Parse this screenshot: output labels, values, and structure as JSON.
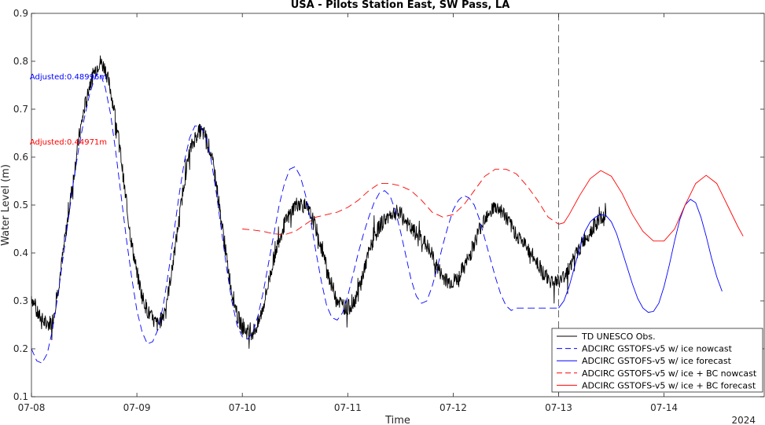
{
  "chart_data": {
    "type": "line",
    "title": "USA - Pilots Station East, SW Pass, LA",
    "xlabel": "Time",
    "ylabel": "Water Level (m)",
    "year_label": "2024",
    "x_tick_labels": [
      "07-08",
      "07-09",
      "07-10",
      "07-11",
      "07-12",
      "07-13",
      "07-14"
    ],
    "y_tick_labels": [
      "0.1",
      "0.2",
      "0.3",
      "0.4",
      "0.5",
      "0.6",
      "0.7",
      "0.8",
      "0.9"
    ],
    "ylim": [
      0.1,
      0.9
    ],
    "xlim_days_from_07_08": [
      0,
      6.95
    ],
    "nowcast_forecast_split_day": 5,
    "grid": false,
    "legend_position": "bottom-right",
    "annotations": [
      {
        "text": "Adjusted:0.48996m",
        "color": "#0000ff",
        "x": 0.35,
        "y": 0.762
      },
      {
        "text": "Adjusted:0.44971m",
        "color": "#ff0000",
        "x": 0.35,
        "y": 0.626
      }
    ],
    "series": [
      {
        "name": "TD UNESCO Obs.",
        "color": "#000000",
        "dash": "solid",
        "noisy": true,
        "points": [
          [
            0,
            0.31
          ],
          [
            0.05,
            0.275
          ],
          [
            0.1,
            0.26
          ],
          [
            0.15,
            0.25
          ],
          [
            0.2,
            0.26
          ],
          [
            0.25,
            0.32
          ],
          [
            0.3,
            0.4
          ],
          [
            0.35,
            0.48
          ],
          [
            0.4,
            0.56
          ],
          [
            0.45,
            0.64
          ],
          [
            0.5,
            0.7
          ],
          [
            0.55,
            0.75
          ],
          [
            0.6,
            0.78
          ],
          [
            0.65,
            0.8
          ],
          [
            0.7,
            0.785
          ],
          [
            0.75,
            0.74
          ],
          [
            0.8,
            0.68
          ],
          [
            0.85,
            0.6
          ],
          [
            0.9,
            0.5
          ],
          [
            0.95,
            0.42
          ],
          [
            1.0,
            0.36
          ],
          [
            1.05,
            0.31
          ],
          [
            1.1,
            0.28
          ],
          [
            1.15,
            0.26
          ],
          [
            1.2,
            0.25
          ],
          [
            1.25,
            0.27
          ],
          [
            1.3,
            0.32
          ],
          [
            1.35,
            0.39
          ],
          [
            1.4,
            0.47
          ],
          [
            1.45,
            0.55
          ],
          [
            1.5,
            0.61
          ],
          [
            1.55,
            0.64
          ],
          [
            1.6,
            0.655
          ],
          [
            1.65,
            0.645
          ],
          [
            1.7,
            0.61
          ],
          [
            1.75,
            0.55
          ],
          [
            1.8,
            0.47
          ],
          [
            1.85,
            0.39
          ],
          [
            1.9,
            0.32
          ],
          [
            1.95,
            0.27
          ],
          [
            2.0,
            0.245
          ],
          [
            2.05,
            0.235
          ],
          [
            2.1,
            0.235
          ],
          [
            2.15,
            0.25
          ],
          [
            2.2,
            0.29
          ],
          [
            2.25,
            0.34
          ],
          [
            2.3,
            0.39
          ],
          [
            2.35,
            0.43
          ],
          [
            2.4,
            0.46
          ],
          [
            2.45,
            0.48
          ],
          [
            2.5,
            0.5
          ],
          [
            2.55,
            0.505
          ],
          [
            2.6,
            0.495
          ],
          [
            2.65,
            0.48
          ],
          [
            2.7,
            0.45
          ],
          [
            2.75,
            0.41
          ],
          [
            2.8,
            0.37
          ],
          [
            2.85,
            0.33
          ],
          [
            2.9,
            0.305
          ],
          [
            2.95,
            0.29
          ],
          [
            3.0,
            0.285
          ],
          [
            3.05,
            0.295
          ],
          [
            3.1,
            0.32
          ],
          [
            3.15,
            0.36
          ],
          [
            3.2,
            0.4
          ],
          [
            3.25,
            0.43
          ],
          [
            3.3,
            0.455
          ],
          [
            3.35,
            0.47
          ],
          [
            3.4,
            0.48
          ],
          [
            3.45,
            0.485
          ],
          [
            3.5,
            0.48
          ],
          [
            3.55,
            0.465
          ],
          [
            3.6,
            0.45
          ],
          [
            3.65,
            0.44
          ],
          [
            3.7,
            0.43
          ],
          [
            3.75,
            0.415
          ],
          [
            3.8,
            0.395
          ],
          [
            3.85,
            0.37
          ],
          [
            3.9,
            0.35
          ],
          [
            3.95,
            0.34
          ],
          [
            4.0,
            0.34
          ],
          [
            4.05,
            0.35
          ],
          [
            4.1,
            0.37
          ],
          [
            4.15,
            0.39
          ],
          [
            4.2,
            0.42
          ],
          [
            4.25,
            0.45
          ],
          [
            4.3,
            0.475
          ],
          [
            4.35,
            0.49
          ],
          [
            4.4,
            0.495
          ],
          [
            4.45,
            0.49
          ],
          [
            4.5,
            0.475
          ],
          [
            4.55,
            0.455
          ],
          [
            4.6,
            0.44
          ],
          [
            4.65,
            0.425
          ],
          [
            4.7,
            0.41
          ],
          [
            4.75,
            0.395
          ],
          [
            4.8,
            0.38
          ],
          [
            4.85,
            0.36
          ],
          [
            4.9,
            0.345
          ],
          [
            4.95,
            0.34
          ],
          [
            5.0,
            0.34
          ],
          [
            5.05,
            0.35
          ],
          [
            5.1,
            0.37
          ],
          [
            5.15,
            0.39
          ],
          [
            5.2,
            0.41
          ],
          [
            5.25,
            0.43
          ],
          [
            5.3,
            0.445
          ],
          [
            5.35,
            0.46
          ],
          [
            5.4,
            0.47
          ],
          [
            5.45,
            0.475
          ]
        ]
      },
      {
        "name": "ADCIRC GSTOFS-v5 w/ ice nowcast",
        "color": "#0000ff",
        "dash": "dashed",
        "noisy": false,
        "points": [
          [
            0,
            0.2
          ],
          [
            0.05,
            0.175
          ],
          [
            0.1,
            0.17
          ],
          [
            0.15,
            0.19
          ],
          [
            0.2,
            0.24
          ],
          [
            0.25,
            0.31
          ],
          [
            0.3,
            0.39
          ],
          [
            0.35,
            0.47
          ],
          [
            0.4,
            0.55
          ],
          [
            0.45,
            0.62
          ],
          [
            0.5,
            0.68
          ],
          [
            0.55,
            0.73
          ],
          [
            0.6,
            0.765
          ],
          [
            0.63,
            0.775
          ],
          [
            0.66,
            0.77
          ],
          [
            0.7,
            0.745
          ],
          [
            0.75,
            0.69
          ],
          [
            0.8,
            0.61
          ],
          [
            0.85,
            0.52
          ],
          [
            0.9,
            0.43
          ],
          [
            0.95,
            0.35
          ],
          [
            1.0,
            0.28
          ],
          [
            1.05,
            0.235
          ],
          [
            1.1,
            0.21
          ],
          [
            1.15,
            0.215
          ],
          [
            1.2,
            0.24
          ],
          [
            1.25,
            0.29
          ],
          [
            1.3,
            0.36
          ],
          [
            1.35,
            0.44
          ],
          [
            1.4,
            0.52
          ],
          [
            1.45,
            0.59
          ],
          [
            1.5,
            0.64
          ],
          [
            1.55,
            0.665
          ],
          [
            1.6,
            0.665
          ],
          [
            1.65,
            0.645
          ],
          [
            1.7,
            0.6
          ],
          [
            1.75,
            0.53
          ],
          [
            1.8,
            0.45
          ],
          [
            1.85,
            0.37
          ],
          [
            1.9,
            0.3
          ],
          [
            1.95,
            0.25
          ],
          [
            2.0,
            0.225
          ],
          [
            2.05,
            0.22
          ],
          [
            2.1,
            0.235
          ],
          [
            2.15,
            0.27
          ],
          [
            2.2,
            0.32
          ],
          [
            2.25,
            0.38
          ],
          [
            2.3,
            0.44
          ],
          [
            2.35,
            0.5
          ],
          [
            2.4,
            0.545
          ],
          [
            2.45,
            0.575
          ],
          [
            2.5,
            0.58
          ],
          [
            2.55,
            0.56
          ],
          [
            2.6,
            0.52
          ],
          [
            2.65,
            0.465
          ],
          [
            2.7,
            0.4
          ],
          [
            2.75,
            0.34
          ],
          [
            2.8,
            0.29
          ],
          [
            2.85,
            0.265
          ],
          [
            2.9,
            0.26
          ],
          [
            2.95,
            0.275
          ],
          [
            3.0,
            0.31
          ],
          [
            3.05,
            0.355
          ],
          [
            3.1,
            0.4
          ],
          [
            3.15,
            0.44
          ],
          [
            3.2,
            0.475
          ],
          [
            3.25,
            0.505
          ],
          [
            3.3,
            0.525
          ],
          [
            3.35,
            0.53
          ],
          [
            3.4,
            0.52
          ],
          [
            3.45,
            0.49
          ],
          [
            3.5,
            0.445
          ],
          [
            3.55,
            0.395
          ],
          [
            3.6,
            0.345
          ],
          [
            3.65,
            0.31
          ],
          [
            3.7,
            0.295
          ],
          [
            3.75,
            0.3
          ],
          [
            3.8,
            0.33
          ],
          [
            3.85,
            0.37
          ],
          [
            3.9,
            0.415
          ],
          [
            3.95,
            0.455
          ],
          [
            4.0,
            0.49
          ],
          [
            4.05,
            0.51
          ],
          [
            4.1,
            0.52
          ],
          [
            4.15,
            0.515
          ],
          [
            4.2,
            0.5
          ],
          [
            4.25,
            0.47
          ],
          [
            4.3,
            0.43
          ],
          [
            4.35,
            0.39
          ],
          [
            4.4,
            0.35
          ],
          [
            4.45,
            0.315
          ],
          [
            4.5,
            0.29
          ],
          [
            4.55,
            0.28
          ],
          [
            4.6,
            0.285
          ],
          [
            5.0,
            0.285
          ]
        ]
      },
      {
        "name": "ADCIRC GSTOFS-v5 w/ ice forecast",
        "color": "#0000ff",
        "dash": "solid",
        "noisy": false,
        "points": [
          [
            5.0,
            0.285
          ],
          [
            5.05,
            0.3
          ],
          [
            5.1,
            0.33
          ],
          [
            5.15,
            0.37
          ],
          [
            5.2,
            0.41
          ],
          [
            5.25,
            0.445
          ],
          [
            5.3,
            0.465
          ],
          [
            5.35,
            0.475
          ],
          [
            5.4,
            0.48
          ],
          [
            5.45,
            0.478
          ],
          [
            5.5,
            0.465
          ],
          [
            5.55,
            0.44
          ],
          [
            5.6,
            0.405
          ],
          [
            5.65,
            0.37
          ],
          [
            5.7,
            0.335
          ],
          [
            5.75,
            0.305
          ],
          [
            5.8,
            0.285
          ],
          [
            5.85,
            0.276
          ],
          [
            5.9,
            0.278
          ],
          [
            5.95,
            0.295
          ],
          [
            6.0,
            0.33
          ],
          [
            6.05,
            0.375
          ],
          [
            6.1,
            0.425
          ],
          [
            6.15,
            0.47
          ],
          [
            6.2,
            0.5
          ],
          [
            6.25,
            0.512
          ],
          [
            6.3,
            0.505
          ],
          [
            6.35,
            0.475
          ],
          [
            6.4,
            0.435
          ],
          [
            6.45,
            0.39
          ],
          [
            6.5,
            0.35
          ],
          [
            6.55,
            0.32
          ]
        ]
      },
      {
        "name": "ADCIRC GSTOFS-v5 w/ ice + BC nowcast",
        "color": "#ff0000",
        "dash": "dashed",
        "noisy": false,
        "points": [
          [
            2.0,
            0.45
          ],
          [
            2.1,
            0.448
          ],
          [
            2.2,
            0.445
          ],
          [
            2.3,
            0.44
          ],
          [
            2.4,
            0.438
          ],
          [
            2.5,
            0.445
          ],
          [
            2.6,
            0.46
          ],
          [
            2.7,
            0.475
          ],
          [
            2.8,
            0.48
          ],
          [
            2.9,
            0.485
          ],
          [
            3.0,
            0.495
          ],
          [
            3.1,
            0.51
          ],
          [
            3.2,
            0.53
          ],
          [
            3.3,
            0.545
          ],
          [
            3.4,
            0.545
          ],
          [
            3.5,
            0.54
          ],
          [
            3.6,
            0.53
          ],
          [
            3.7,
            0.51
          ],
          [
            3.8,
            0.485
          ],
          [
            3.9,
            0.475
          ],
          [
            4.0,
            0.48
          ],
          [
            4.1,
            0.5
          ],
          [
            4.2,
            0.53
          ],
          [
            4.3,
            0.56
          ],
          [
            4.4,
            0.575
          ],
          [
            4.5,
            0.575
          ],
          [
            4.6,
            0.565
          ],
          [
            4.7,
            0.54
          ],
          [
            4.8,
            0.51
          ],
          [
            4.9,
            0.475
          ],
          [
            5.0,
            0.46
          ]
        ]
      },
      {
        "name": "ADCIRC GSTOFS-v5 w/ ice + BC forecast",
        "color": "#ff0000",
        "dash": "solid",
        "noisy": false,
        "points": [
          [
            5.0,
            0.46
          ],
          [
            5.05,
            0.463
          ],
          [
            5.1,
            0.48
          ],
          [
            5.2,
            0.52
          ],
          [
            5.3,
            0.555
          ],
          [
            5.4,
            0.572
          ],
          [
            5.5,
            0.56
          ],
          [
            5.6,
            0.525
          ],
          [
            5.7,
            0.48
          ],
          [
            5.8,
            0.445
          ],
          [
            5.9,
            0.425
          ],
          [
            6.0,
            0.425
          ],
          [
            6.1,
            0.45
          ],
          [
            6.2,
            0.5
          ],
          [
            6.3,
            0.545
          ],
          [
            6.4,
            0.562
          ],
          [
            6.5,
            0.545
          ],
          [
            6.6,
            0.5
          ],
          [
            6.7,
            0.455
          ],
          [
            6.75,
            0.435
          ]
        ]
      }
    ]
  }
}
